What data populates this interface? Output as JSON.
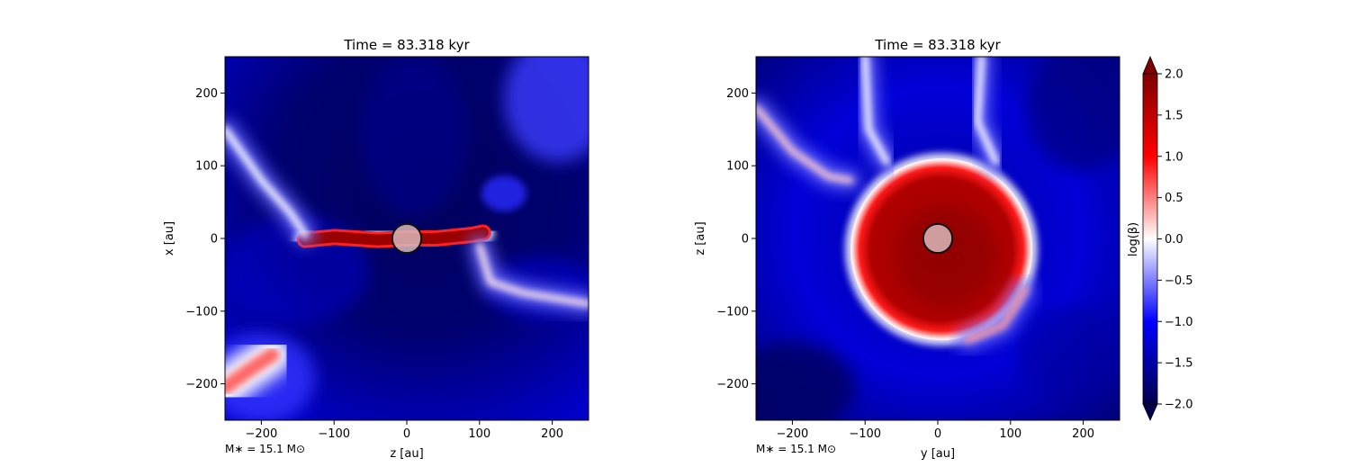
{
  "chart_data": [
    {
      "type": "heatmap",
      "title": "Time = 83.318 kyr",
      "xlabel": "z [au]",
      "ylabel": "x [au]",
      "xlim": [
        -250,
        250
      ],
      "ylim": [
        -250,
        250
      ],
      "xticks": [
        -200,
        -100,
        0,
        100,
        200
      ],
      "yticks": [
        -200,
        -100,
        0,
        100,
        200
      ],
      "xtick_labels": [
        "−200",
        "−100",
        "0",
        "100",
        "200"
      ],
      "ytick_labels": [
        "−200",
        "−100",
        "0",
        "100",
        "200"
      ],
      "annotation": "M∗ = 15.1 M⊙",
      "star": {
        "x": 0,
        "y": 0,
        "r": 20
      },
      "features": [
        {
          "kind": "disk",
          "points": [
            [
              -140,
              -2
            ],
            [
              -100,
              2
            ],
            [
              -40,
              -2
            ],
            [
              0,
              0
            ],
            [
              40,
              0
            ],
            [
              90,
              5
            ],
            [
              105,
              8
            ]
          ],
          "level": 1.8
        },
        {
          "kind": "filament",
          "points": [
            [
              -250,
              150
            ],
            [
              -200,
              80
            ],
            [
              -160,
              35
            ],
            [
              -140,
              5
            ]
          ],
          "level": 0.0
        },
        {
          "kind": "filament",
          "points": [
            [
              100,
              -10
            ],
            [
              115,
              -60
            ],
            [
              160,
              -75
            ],
            [
              250,
              -90
            ]
          ],
          "level": 0.1
        },
        {
          "kind": "blob",
          "points": [
            [
              -250,
              -205
            ],
            [
              -215,
              -180
            ],
            [
              -185,
              -160
            ]
          ],
          "level": 0.6
        }
      ]
    },
    {
      "type": "heatmap",
      "title": "Time = 83.318 kyr",
      "xlabel": "y [au]",
      "ylabel": "z [au]",
      "xlim": [
        -250,
        250
      ],
      "ylim": [
        -250,
        250
      ],
      "xticks": [
        -200,
        -100,
        0,
        100,
        200
      ],
      "yticks": [
        -200,
        -100,
        0,
        100,
        200
      ],
      "xtick_labels": [
        "−200",
        "−100",
        "0",
        "100",
        "200"
      ],
      "ytick_labels": [
        "−200",
        "−100",
        "0",
        "100",
        "200"
      ],
      "annotation": "M∗ = 15.1 M⊙",
      "star": {
        "x": 0,
        "y": 0,
        "r": 20
      },
      "features": [
        {
          "kind": "bubble",
          "center": [
            5,
            -15
          ],
          "radius": 125,
          "level": 1.9
        },
        {
          "kind": "filament",
          "points": [
            [
              -250,
              180
            ],
            [
              -200,
              120
            ],
            [
              -150,
              85
            ],
            [
              -120,
              80
            ]
          ],
          "level": 0.2
        },
        {
          "kind": "filament",
          "points": [
            [
              -100,
              250
            ],
            [
              -95,
              150
            ],
            [
              -70,
              105
            ]
          ],
          "level": 0.0
        },
        {
          "kind": "filament",
          "points": [
            [
              60,
              250
            ],
            [
              55,
              160
            ],
            [
              80,
              105
            ]
          ],
          "level": 0.0
        },
        {
          "kind": "filament",
          "points": [
            [
              120,
              -70
            ],
            [
              90,
              -120
            ],
            [
              40,
              -140
            ]
          ],
          "level": 0.4
        }
      ]
    }
  ],
  "colorbar": {
    "label": "log(β)",
    "min": -2.0,
    "max": 2.0,
    "ticks": [
      2.0,
      1.5,
      1.0,
      0.5,
      0.0,
      -0.5,
      -1.0,
      -1.5,
      -2.0
    ],
    "tick_labels": [
      "2.0",
      "1.5",
      "1.0",
      "0.5",
      "0.0",
      "−0.5",
      "−1.0",
      "−1.5",
      "−2.0"
    ],
    "colormap": "seismic",
    "colors": [
      "#00004c",
      "#0000ff",
      "#ffffff",
      "#ff0000",
      "#7f0000"
    ]
  }
}
